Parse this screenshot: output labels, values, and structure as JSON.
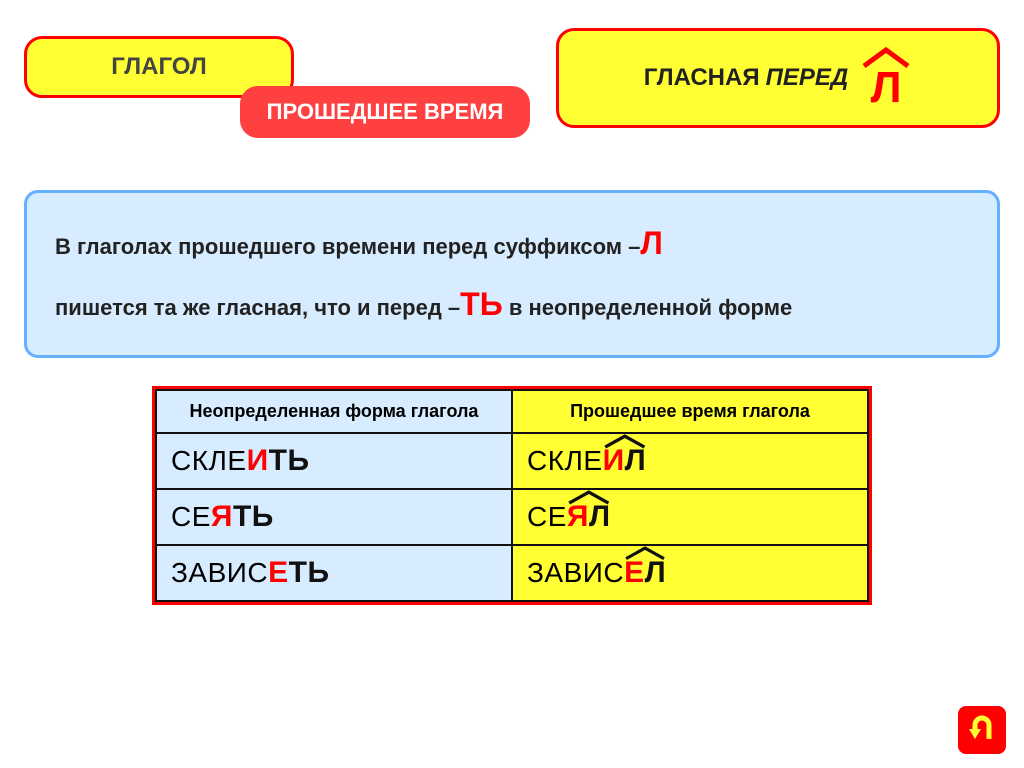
{
  "colors": {
    "yellow": "#ffff33",
    "red_border": "#ff0000",
    "red_text": "#ff0000",
    "blue_bg": "#d7ecff",
    "blue_border": "#66b0ff",
    "cell_border": "#111111"
  },
  "header": {
    "verb_label": "ГЛАГОЛ",
    "tense_label": "ПРОШЕДШЕЕ ВРЕМЯ",
    "vowel_label_part1": "ГЛАСНАЯ",
    "vowel_label_part2": "ПЕРЕД",
    "vowel_letter": "Л"
  },
  "rule": {
    "line1_part1": "В глаголах прошедшего времени перед суффиксом –",
    "line1_letter": "Л",
    "line2_part1": "пишется та же гласная, что и  перед –",
    "line2_letters": "ТЬ",
    "line2_part2": " в неопределенной форме"
  },
  "table": {
    "head_left": "Неопределенная форма глагола",
    "head_right": "Прошедшее время глагола",
    "rows": [
      {
        "left_stem": "СКЛЕ",
        "left_vowel": "И",
        "left_end": "ТЬ",
        "right_stem": "СКЛЕ",
        "right_vowel": "И",
        "right_end": "Л"
      },
      {
        "left_stem": "СЕ",
        "left_vowel": "Я",
        "left_end": "ТЬ",
        "right_stem": "СЕ",
        "right_vowel": "Я",
        "right_end": "Л"
      },
      {
        "left_stem": "ЗАВИС",
        "left_vowel": "Е",
        "left_end": "ТЬ",
        "right_stem": "ЗАВИС",
        "right_vowel": "Е",
        "right_end": "Л"
      }
    ]
  },
  "nav": {
    "name": "back-arrow"
  }
}
